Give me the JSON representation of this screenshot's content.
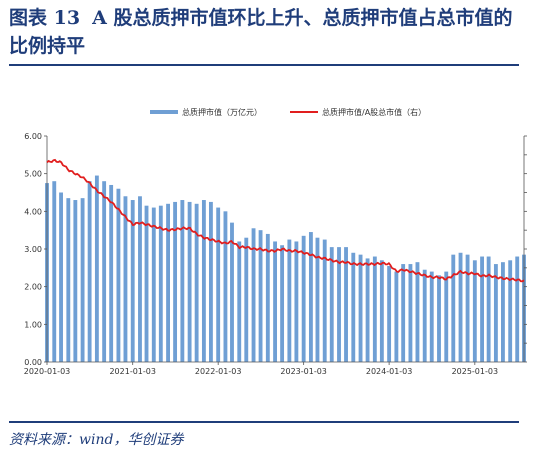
{
  "title": {
    "label": "图表",
    "number": "13",
    "text": "A 股总质押市值环比上升、总质押市值占总市值的比例持平"
  },
  "source": "资料来源：wind，华创证券",
  "chart_data": {
    "type": "bar+line",
    "x_tick_labels": [
      "2020-01-03",
      "2021-01-03",
      "2022-01-03",
      "2023-01-03",
      "2024-01-03",
      "2025-01-03"
    ],
    "x_range": [
      "2020-01-03",
      "2025-08-01"
    ],
    "y_left": {
      "ylim": [
        0,
        6
      ],
      "ticks": [
        0,
        1,
        2,
        3,
        4,
        5,
        6
      ],
      "tick_labels": [
        "0.00",
        "1.00",
        "2.00",
        "3.00",
        "4.00",
        "5.00",
        "6.00"
      ]
    },
    "y_right": {
      "tick_labels_visible": false
    },
    "grid": false,
    "legend_position": "top",
    "colors": {
      "bars": "#6f9fd4",
      "line": "#e11e1e",
      "title": "#1f3d7a"
    },
    "series": [
      {
        "name": "总质押市值（万亿元）",
        "kind": "bar",
        "axis": "left",
        "points": [
          [
            "2020-01-03",
            4.75
          ],
          [
            "2020-02-03",
            4.8
          ],
          [
            "2020-03-03",
            4.5
          ],
          [
            "2020-04-03",
            4.35
          ],
          [
            "2020-05-03",
            4.3
          ],
          [
            "2020-06-03",
            4.35
          ],
          [
            "2020-07-03",
            4.8
          ],
          [
            "2020-08-03",
            4.95
          ],
          [
            "2020-09-03",
            4.8
          ],
          [
            "2020-10-03",
            4.7
          ],
          [
            "2020-11-03",
            4.6
          ],
          [
            "2020-12-03",
            4.4
          ],
          [
            "2021-01-03",
            4.3
          ],
          [
            "2021-02-03",
            4.4
          ],
          [
            "2021-03-03",
            4.15
          ],
          [
            "2021-04-03",
            4.1
          ],
          [
            "2021-05-03",
            4.15
          ],
          [
            "2021-06-03",
            4.2
          ],
          [
            "2021-07-03",
            4.25
          ],
          [
            "2021-08-03",
            4.3
          ],
          [
            "2021-09-03",
            4.25
          ],
          [
            "2021-10-03",
            4.2
          ],
          [
            "2021-11-03",
            4.3
          ],
          [
            "2021-12-03",
            4.25
          ],
          [
            "2022-01-03",
            4.1
          ],
          [
            "2022-02-03",
            4.0
          ],
          [
            "2022-03-03",
            3.7
          ],
          [
            "2022-04-03",
            3.2
          ],
          [
            "2022-05-03",
            3.3
          ],
          [
            "2022-06-03",
            3.55
          ],
          [
            "2022-07-03",
            3.5
          ],
          [
            "2022-08-03",
            3.4
          ],
          [
            "2022-09-03",
            3.2
          ],
          [
            "2022-10-03",
            3.1
          ],
          [
            "2022-11-03",
            3.25
          ],
          [
            "2022-12-03",
            3.2
          ],
          [
            "2023-01-03",
            3.35
          ],
          [
            "2023-02-03",
            3.45
          ],
          [
            "2023-03-03",
            3.3
          ],
          [
            "2023-04-03",
            3.25
          ],
          [
            "2023-05-03",
            3.05
          ],
          [
            "2023-06-03",
            3.05
          ],
          [
            "2023-07-03",
            3.05
          ],
          [
            "2023-08-03",
            2.9
          ],
          [
            "2023-09-03",
            2.85
          ],
          [
            "2023-10-03",
            2.75
          ],
          [
            "2023-11-03",
            2.8
          ],
          [
            "2023-12-03",
            2.7
          ],
          [
            "2024-01-03",
            2.55
          ],
          [
            "2024-02-03",
            2.4
          ],
          [
            "2024-03-03",
            2.6
          ],
          [
            "2024-04-03",
            2.6
          ],
          [
            "2024-05-03",
            2.65
          ],
          [
            "2024-06-03",
            2.45
          ],
          [
            "2024-07-03",
            2.4
          ],
          [
            "2024-08-03",
            2.3
          ],
          [
            "2024-09-03",
            2.4
          ],
          [
            "2024-10-03",
            2.85
          ],
          [
            "2024-11-03",
            2.9
          ],
          [
            "2024-12-03",
            2.85
          ],
          [
            "2025-01-03",
            2.7
          ],
          [
            "2025-02-03",
            2.8
          ],
          [
            "2025-03-03",
            2.8
          ],
          [
            "2025-04-03",
            2.6
          ],
          [
            "2025-05-03",
            2.65
          ],
          [
            "2025-06-03",
            2.7
          ],
          [
            "2025-07-03",
            2.8
          ],
          [
            "2025-08-01",
            2.85
          ]
        ]
      },
      {
        "name": "总质押市值/A股总市值（右）",
        "kind": "line",
        "axis": "right",
        "points_in_left_axis_units": [
          [
            "2020-01-03",
            5.3
          ],
          [
            "2020-02-03",
            5.35
          ],
          [
            "2020-03-03",
            5.3
          ],
          [
            "2020-04-03",
            5.1
          ],
          [
            "2020-05-03",
            5.0
          ],
          [
            "2020-06-03",
            4.9
          ],
          [
            "2020-07-03",
            4.75
          ],
          [
            "2020-08-03",
            4.55
          ],
          [
            "2020-09-03",
            4.4
          ],
          [
            "2020-10-03",
            4.25
          ],
          [
            "2020-11-03",
            4.05
          ],
          [
            "2020-12-03",
            3.85
          ],
          [
            "2021-01-03",
            3.65
          ],
          [
            "2021-02-03",
            3.7
          ],
          [
            "2021-03-03",
            3.65
          ],
          [
            "2021-04-03",
            3.6
          ],
          [
            "2021-05-03",
            3.55
          ],
          [
            "2021-06-03",
            3.5
          ],
          [
            "2021-07-03",
            3.52
          ],
          [
            "2021-08-03",
            3.55
          ],
          [
            "2021-09-03",
            3.55
          ],
          [
            "2021-10-03",
            3.4
          ],
          [
            "2021-11-03",
            3.3
          ],
          [
            "2021-12-03",
            3.25
          ],
          [
            "2022-01-03",
            3.2
          ],
          [
            "2022-02-03",
            3.15
          ],
          [
            "2022-03-03",
            3.2
          ],
          [
            "2022-04-03",
            3.05
          ],
          [
            "2022-05-03",
            3.05
          ],
          [
            "2022-06-03",
            3.0
          ],
          [
            "2022-07-03",
            3.0
          ],
          [
            "2022-08-03",
            2.95
          ],
          [
            "2022-09-03",
            2.95
          ],
          [
            "2022-10-03",
            3.0
          ],
          [
            "2022-11-03",
            2.95
          ],
          [
            "2022-12-03",
            2.95
          ],
          [
            "2023-01-03",
            2.9
          ],
          [
            "2023-02-03",
            2.85
          ],
          [
            "2023-03-03",
            2.78
          ],
          [
            "2023-04-03",
            2.75
          ],
          [
            "2023-05-03",
            2.7
          ],
          [
            "2023-06-03",
            2.65
          ],
          [
            "2023-07-03",
            2.65
          ],
          [
            "2023-08-03",
            2.6
          ],
          [
            "2023-09-03",
            2.6
          ],
          [
            "2023-10-03",
            2.6
          ],
          [
            "2023-11-03",
            2.6
          ],
          [
            "2023-12-03",
            2.62
          ],
          [
            "2024-01-03",
            2.6
          ],
          [
            "2024-02-03",
            2.4
          ],
          [
            "2024-03-03",
            2.45
          ],
          [
            "2024-04-03",
            2.4
          ],
          [
            "2024-05-03",
            2.35
          ],
          [
            "2024-06-03",
            2.3
          ],
          [
            "2024-07-03",
            2.25
          ],
          [
            "2024-08-03",
            2.25
          ],
          [
            "2024-09-03",
            2.2
          ],
          [
            "2024-10-03",
            2.3
          ],
          [
            "2024-11-03",
            2.4
          ],
          [
            "2024-12-03",
            2.35
          ],
          [
            "2025-01-03",
            2.35
          ],
          [
            "2025-02-03",
            2.28
          ],
          [
            "2025-03-03",
            2.3
          ],
          [
            "2025-04-03",
            2.25
          ],
          [
            "2025-05-03",
            2.22
          ],
          [
            "2025-06-03",
            2.2
          ],
          [
            "2025-07-03",
            2.18
          ],
          [
            "2025-08-01",
            2.15
          ]
        ]
      }
    ]
  }
}
